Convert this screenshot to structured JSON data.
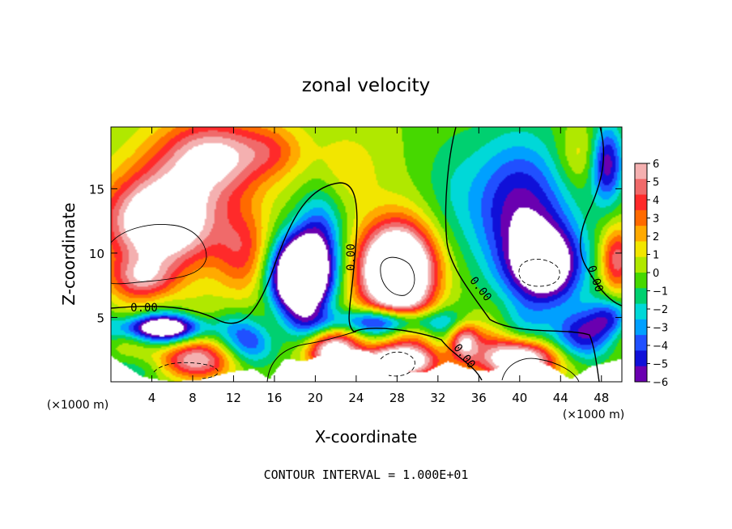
{
  "chart_data": {
    "type": "heatmap",
    "title": "zonal velocity",
    "xlabel": "X-coordinate",
    "ylabel": "Z-coordinate",
    "x_unit_left": "(×1000 m)",
    "x_unit_right": "(×1000 m)",
    "footer": "CONTOUR INTERVAL = 1.000E+01",
    "xlim": [
      0,
      50
    ],
    "ylim": [
      0,
      19.8
    ],
    "x_ticks": [
      "4",
      "8",
      "12",
      "16",
      "20",
      "24",
      "28",
      "32",
      "36",
      "40",
      "44",
      "48"
    ],
    "x_tick_values": [
      4,
      8,
      12,
      16,
      20,
      24,
      28,
      32,
      36,
      40,
      44,
      48
    ],
    "y_ticks": [
      "5",
      "10",
      "15"
    ],
    "y_tick_values": [
      5,
      10,
      15
    ],
    "colorbar": {
      "min": -6,
      "max": 6,
      "labels": [
        "6",
        "5",
        "4",
        "3",
        "2",
        "1",
        "0",
        "−1",
        "−2",
        "−3",
        "−4",
        "−5",
        "−6"
      ],
      "colors": [
        "#f4b0b0",
        "#f06a6a",
        "#ff2a2a",
        "#ff6a00",
        "#ffaa00",
        "#f2e600",
        "#b0e800",
        "#46d800",
        "#00d070",
        "#00d8d8",
        "#00a0ff",
        "#2050ff",
        "#1010d8",
        "#6a00b0",
        "#ffffff"
      ]
    },
    "contour_labels": [
      "0.00",
      "0.00",
      "0.00",
      "0.00",
      "0.00"
    ],
    "bases": [
      {
        "x": 0,
        "zTop": 2.0
      },
      {
        "x": 3,
        "zTop": 0.4
      },
      {
        "x": 6,
        "zTop": 0.0
      },
      {
        "x": 9,
        "zTop": 0.2
      },
      {
        "x": 12,
        "zTop": 0.8
      },
      {
        "x": 14,
        "zTop": 1.0
      },
      {
        "x": 15.5,
        "zTop": 0.2
      },
      {
        "x": 17,
        "zTop": 1.8
      },
      {
        "x": 19,
        "zTop": 1.6
      },
      {
        "x": 21,
        "zTop": 2.2
      },
      {
        "x": 23,
        "zTop": 2.6
      },
      {
        "x": 25,
        "zTop": 2.4
      },
      {
        "x": 27,
        "zTop": 1.8
      },
      {
        "x": 29,
        "zTop": 0.8
      },
      {
        "x": 31,
        "zTop": 0.8
      },
      {
        "x": 33,
        "zTop": 1.6
      },
      {
        "x": 35,
        "zTop": 1.0
      },
      {
        "x": 37,
        "zTop": 0.8
      },
      {
        "x": 39,
        "zTop": 1.4
      },
      {
        "x": 41,
        "zTop": 1.8
      },
      {
        "x": 43,
        "zTop": 1.2
      },
      {
        "x": 45,
        "zTop": 0.2
      },
      {
        "x": 47,
        "zTop": 1.2
      },
      {
        "x": 50,
        "zTop": 1.8
      }
    ],
    "sources": [
      {
        "x": 5,
        "z": 12.5,
        "sx": 5.5,
        "sz": 3.6,
        "a": 9.5
      },
      {
        "x": 10,
        "z": 17.5,
        "sx": 5.5,
        "sz": 3.0,
        "a": 6.5
      },
      {
        "x": 3,
        "z": 8.0,
        "sx": 3.2,
        "sz": 1.7,
        "a": 4.5
      },
      {
        "x": 13,
        "z": 10.0,
        "sx": 2.8,
        "sz": 3.5,
        "a": 3.5
      },
      {
        "x": 16,
        "z": 18.0,
        "sx": 3.0,
        "sz": 2.0,
        "a": 2.0
      },
      {
        "x": 18.5,
        "z": 8.2,
        "sx": 2.8,
        "sz": 3.0,
        "a": -13
      },
      {
        "x": 20.5,
        "z": 11.5,
        "sx": 2.2,
        "sz": 3.8,
        "a": -3.5
      },
      {
        "x": 28,
        "z": 8.6,
        "sx": 3.6,
        "sz": 3.6,
        "a": 13
      },
      {
        "x": 23,
        "z": 16.5,
        "sx": 3.5,
        "sz": 3.0,
        "a": 1.5
      },
      {
        "x": 33,
        "z": 15.0,
        "sx": 3.0,
        "sz": 5.0,
        "a": -1.0
      },
      {
        "x": 40,
        "z": 13.5,
        "sx": 5.0,
        "sz": 5.5,
        "a": -5.5
      },
      {
        "x": 42.5,
        "z": 9.0,
        "sx": 3.5,
        "sz": 3.0,
        "a": -8
      },
      {
        "x": 46,
        "z": 17.5,
        "sx": 2.5,
        "sz": 2.5,
        "a": 2.0
      },
      {
        "x": 48.5,
        "z": 17.0,
        "sx": 1.6,
        "sz": 3.0,
        "a": -6
      },
      {
        "x": 49.5,
        "z": 9.5,
        "sx": 1.6,
        "sz": 2.5,
        "a": 5
      },
      {
        "x": 5,
        "z": 4.2,
        "sx": 4.5,
        "sz": 1.0,
        "a": -8
      },
      {
        "x": 14,
        "z": 3.0,
        "sx": 2.5,
        "sz": 1.8,
        "a": -4
      },
      {
        "x": 3,
        "z": 1.0,
        "sx": 4.0,
        "sz": 1.2,
        "a": -2
      },
      {
        "x": 8,
        "z": 1.6,
        "sx": 4.0,
        "sz": 1.4,
        "a": 6
      },
      {
        "x": 21.5,
        "z": 2.4,
        "sx": 2.5,
        "sz": 1.4,
        "a": 7
      },
      {
        "x": 27,
        "z": 4.7,
        "sx": 6.0,
        "sz": 1.0,
        "a": -6
      },
      {
        "x": 28,
        "z": 1.6,
        "sx": 4.0,
        "sz": 1.3,
        "a": 9
      },
      {
        "x": 34.5,
        "z": 3.2,
        "sx": 1.5,
        "sz": 1.5,
        "a": 6
      },
      {
        "x": 40,
        "z": 1.8,
        "sx": 4.0,
        "sz": 1.6,
        "a": 9
      },
      {
        "x": 45,
        "z": 3.5,
        "sx": 3.5,
        "sz": 2.0,
        "a": -5
      },
      {
        "x": 49,
        "z": 5.0,
        "sx": 2.0,
        "sz": 1.5,
        "a": -4
      }
    ]
  }
}
